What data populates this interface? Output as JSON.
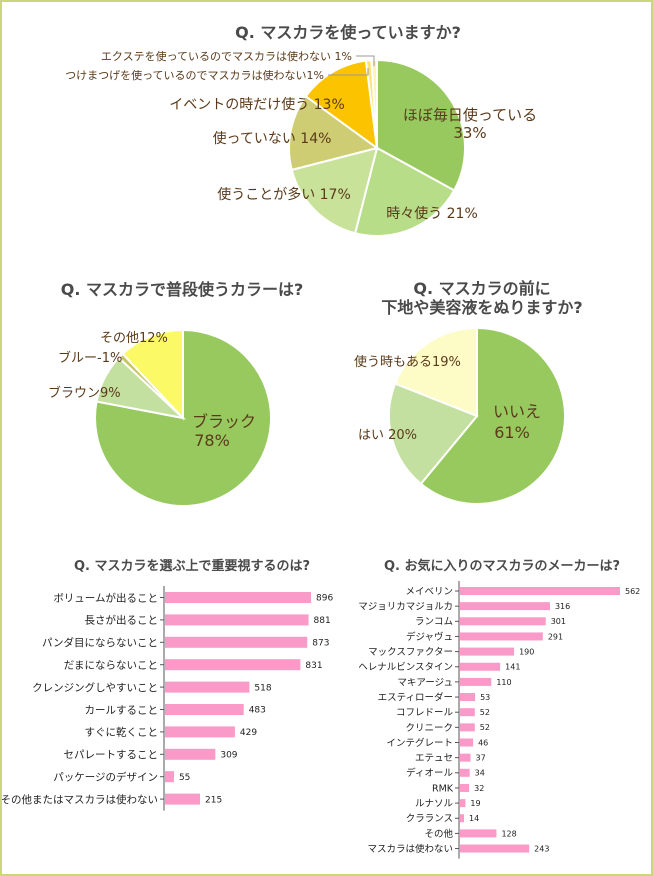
{
  "chart_data": [
    {
      "type": "pie",
      "title": "Q. マスカラを使っていますか?",
      "slices": [
        {
          "label": "ほぼ毎日使っている",
          "pct": "33%",
          "value": 33,
          "color": "#97c95f",
          "text_color": "#5b3a1a"
        },
        {
          "label": "時々使う",
          "pct": "21%",
          "value": 21,
          "color": "#b8dd89",
          "text_color": "#5b3a1a"
        },
        {
          "label": "使うことが多い",
          "pct": "17%",
          "value": 17,
          "color": "#c9e29a",
          "text_color": "#5b3a1a"
        },
        {
          "label": "使っていない",
          "pct": "14%",
          "value": 14,
          "color": "#cfcd74",
          "text_color": "#5b3a1a"
        },
        {
          "label": "イベントの時だけ使う",
          "pct": "13%",
          "value": 13,
          "color": "#fcc400",
          "text_color": "#5b3a1a"
        },
        {
          "label": "つけまつげを使っているのでマスカラは使わない",
          "pct": "1%",
          "value": 1,
          "color": "#fde27a",
          "text_color": "#5b3a1a"
        },
        {
          "label": "エクステを使っているのでマスカラは使わない",
          "pct": "1%",
          "value": 1,
          "color": "#fff3b8",
          "text_color": "#5b3a1a"
        }
      ]
    },
    {
      "type": "pie",
      "title": "Q. マスカラで普段使うカラーは?",
      "slices": [
        {
          "label": "ブラック",
          "pct": "78%",
          "value": 78,
          "color": "#97c95f"
        },
        {
          "label": "ブラウン",
          "pct": "9%",
          "value": 9,
          "color": "#c3e0a0"
        },
        {
          "label": "ブルー",
          "pct": "1%",
          "value": 1,
          "color": "#c8c566"
        },
        {
          "label": "その他",
          "pct": "12%",
          "value": 12,
          "color": "#fbfa66"
        }
      ]
    },
    {
      "type": "pie",
      "title_lines": [
        "Q. マスカラの前に",
        "下地や美容液をぬりますか?"
      ],
      "slices": [
        {
          "label": "いいえ",
          "pct": "61%",
          "value": 61,
          "color": "#97c95f"
        },
        {
          "label": "はい",
          "pct": "20%",
          "value": 20,
          "color": "#c3e0a0"
        },
        {
          "label": "使う時もある",
          "pct": "19%",
          "value": 19,
          "color": "#fdfbc6"
        }
      ]
    },
    {
      "type": "bar",
      "orientation": "horizontal",
      "title": "Q. マスカラを選ぶ上で重要視するのは?",
      "categories": [
        "ボリュームが出ること",
        "長さが出ること",
        "パンダ目にならないこと",
        "だまにならないこと",
        "クレンジングしやすいこと",
        "カールすること",
        "すぐに乾くこと",
        "セパレートすること",
        "パッケージのデザイン",
        "その他またはマスカラは使わない"
      ],
      "values": [
        896,
        881,
        873,
        831,
        518,
        483,
        429,
        309,
        55,
        215
      ],
      "max": 896,
      "bar_color": "#f99ac8"
    },
    {
      "type": "bar",
      "orientation": "horizontal",
      "title": "Q. お気に入りのマスカラのメーカーは?",
      "categories": [
        "メイベリン",
        "マジョリカマジョルカ",
        "ランコム",
        "デジャヴュ",
        "マックスファクター",
        "ヘレナルビンスタイン",
        "マキアージュ",
        "エスティローダー",
        "コフレドール",
        "クリニーク",
        "インテグレート",
        "エテュセ",
        "ディオール",
        "RMK",
        "ルナソル",
        "クラランス",
        "その他",
        "マスカラは使わない"
      ],
      "values": [
        562,
        316,
        301,
        291,
        190,
        141,
        110,
        53,
        52,
        52,
        46,
        37,
        34,
        32,
        19,
        14,
        128,
        243
      ],
      "max": 562,
      "bar_color": "#f99ac8"
    }
  ]
}
